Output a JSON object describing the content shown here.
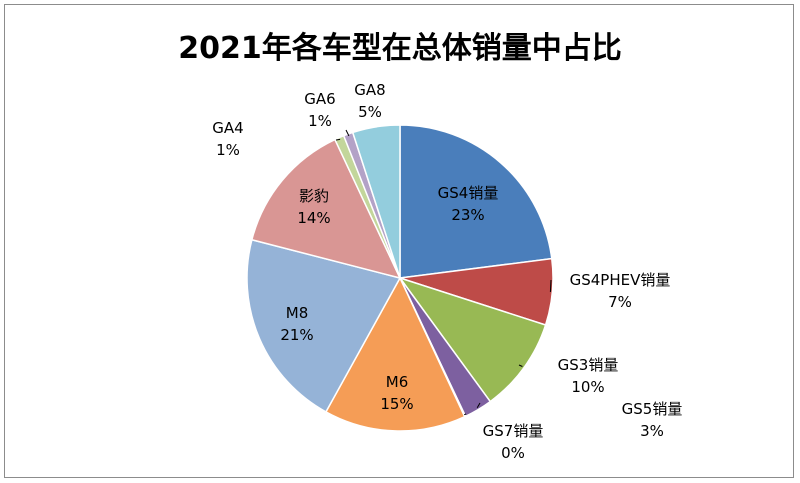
{
  "chart_data": {
    "type": "pie",
    "title": "2021年各车型在总体销量中占比",
    "slices": [
      {
        "name": "GS4销量",
        "percent_label": "23%",
        "value": 23.0,
        "color": "#4a7ebb"
      },
      {
        "name": "GS4PHEV销量",
        "percent_label": "7%",
        "value": 7.0,
        "color": "#be4b48"
      },
      {
        "name": "GS3销量",
        "percent_label": "10%",
        "value": 10.0,
        "color": "#98b954"
      },
      {
        "name": "GS5销量",
        "percent_label": "3%",
        "value": 3.0,
        "color": "#7d60a0"
      },
      {
        "name": "GS7销量",
        "percent_label": "0%",
        "value": 0.1,
        "color": "#46aac5"
      },
      {
        "name": "M6",
        "percent_label": "15%",
        "value": 15.0,
        "color": "#f59d56"
      },
      {
        "name": "M8",
        "percent_label": "21%",
        "value": 21.0,
        "color": "#95b3d7"
      },
      {
        "name": "影豹",
        "percent_label": "14%",
        "value": 14.0,
        "color": "#d99694"
      },
      {
        "name": "GA4",
        "percent_label": "1%",
        "value": 1.0,
        "color": "#c3d69b"
      },
      {
        "name": "GA6",
        "percent_label": "1%",
        "value": 1.0,
        "color": "#b3a2c7"
      },
      {
        "name": "GA8",
        "percent_label": "5%",
        "value": 5.0,
        "color": "#93cddd"
      }
    ],
    "legend": "none",
    "start_angle_deg": 0,
    "direction": "clockwise"
  }
}
